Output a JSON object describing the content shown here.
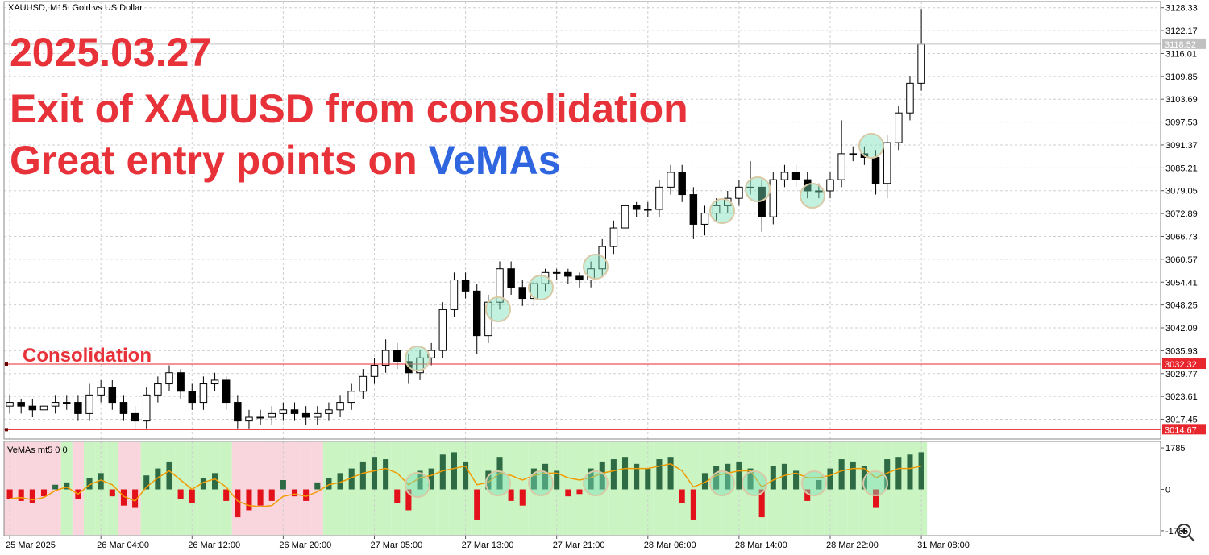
{
  "chart_data": [
    {
      "type": "candlestick",
      "symbol_label": "XAUUSD, M15:  Gold vs US Dollar",
      "title_lines": [
        "2025.03.27",
        "Exit of XAUUSD from consolidation",
        "Great entry points on"
      ],
      "title_highlight": "VeMAs",
      "annotation": "Consolidation",
      "open": [
        3021,
        3022,
        3021,
        3020,
        3021,
        3022,
        3022,
        3019,
        3024,
        3026,
        3022,
        3019,
        3017,
        3024,
        3027,
        3030,
        3025,
        3022,
        3027,
        3028,
        3022,
        3017,
        3018,
        3018,
        3019,
        3020,
        3019,
        3018,
        3019,
        3020,
        3022,
        3025,
        3029,
        3032,
        3036,
        3033,
        3030,
        3034,
        3036,
        3047,
        3055,
        3052,
        3040,
        3049,
        3058,
        3053,
        3050,
        3054,
        3057,
        3057,
        3056,
        3055,
        3058,
        3064,
        3069,
        3075,
        3074,
        3074,
        3080,
        3084,
        3078,
        3070,
        3073,
        3075,
        3077,
        3080,
        3080,
        3072,
        3082,
        3084,
        3082,
        3079,
        3079,
        3082,
        3089,
        3089,
        3088,
        3081,
        3092,
        3100,
        3108
      ],
      "high": [
        3024,
        3023,
        3023,
        3023,
        3024,
        3024,
        3024,
        3027,
        3028,
        3028,
        3024,
        3021,
        3026,
        3029,
        3032,
        3031,
        3027,
        3029,
        3030,
        3029,
        3024,
        3020,
        3020,
        3021,
        3022,
        3022,
        3021,
        3021,
        3022,
        3024,
        3027,
        3031,
        3034,
        3039,
        3038,
        3035,
        3036,
        3038,
        3049,
        3057,
        3057,
        3054,
        3051,
        3060,
        3060,
        3055,
        3056,
        3058,
        3058,
        3058,
        3057,
        3060,
        3066,
        3071,
        3077,
        3076,
        3076,
        3082,
        3086,
        3086,
        3080,
        3075,
        3077,
        3079,
        3082,
        3087,
        3082,
        3084,
        3086,
        3086,
        3084,
        3081,
        3084,
        3098,
        3091,
        3091,
        3090,
        3094,
        3102,
        3110,
        3128
      ],
      "low": [
        3019,
        3019,
        3018,
        3018,
        3019,
        3020,
        3017,
        3017,
        3022,
        3020,
        3017,
        3015,
        3015,
        3022,
        3025,
        3023,
        3020,
        3020,
        3025,
        3020,
        3015,
        3015,
        3016,
        3016,
        3017,
        3017,
        3016,
        3016,
        3017,
        3018,
        3020,
        3023,
        3027,
        3030,
        3031,
        3027,
        3028,
        3032,
        3034,
        3045,
        3050,
        3035,
        3038,
        3047,
        3051,
        3048,
        3048,
        3052,
        3055,
        3054,
        3053,
        3053,
        3056,
        3062,
        3067,
        3072,
        3072,
        3072,
        3078,
        3076,
        3066,
        3067,
        3071,
        3073,
        3075,
        3078,
        3068,
        3070,
        3080,
        3080,
        3077,
        3077,
        3077,
        3080,
        3087,
        3086,
        3078,
        3077,
        3090,
        3098,
        3106
      ],
      "close": [
        3022,
        3021,
        3020,
        3021,
        3022,
        3022,
        3019,
        3024,
        3026,
        3022,
        3019,
        3017,
        3024,
        3027,
        3030,
        3025,
        3022,
        3027,
        3028,
        3022,
        3017,
        3018,
        3018,
        3019,
        3020,
        3019,
        3018,
        3019,
        3020,
        3022,
        3025,
        3029,
        3032,
        3036,
        3033,
        3030,
        3034,
        3036,
        3047,
        3055,
        3052,
        3040,
        3049,
        3058,
        3053,
        3050,
        3054,
        3057,
        3057,
        3056,
        3055,
        3058,
        3064,
        3069,
        3075,
        3074,
        3074,
        3080,
        3084,
        3078,
        3070,
        3073,
        3075,
        3077,
        3080,
        3080,
        3072,
        3082,
        3084,
        3082,
        3079,
        3079,
        3082,
        3089,
        3089,
        3088,
        3081,
        3092,
        3100,
        3108,
        3118.52
      ],
      "xlim": [
        -0.5,
        101
      ],
      "xticks": [
        {
          "value": 0,
          "label": "25 Mar 2025"
        },
        {
          "value": 8,
          "label": "26 Mar 04:00"
        },
        {
          "value": 16,
          "label": "26 Mar 12:00"
        },
        {
          "value": 24,
          "label": "26 Mar 20:00"
        },
        {
          "value": 32,
          "label": "27 Mar 05:00"
        },
        {
          "value": 40,
          "label": "27 Mar 13:00"
        },
        {
          "value": 48,
          "label": "27 Mar 21:00"
        },
        {
          "value": 56,
          "label": "28 Mar 06:00"
        },
        {
          "value": 64,
          "label": "28 Mar 14:00"
        },
        {
          "value": 72,
          "label": "28 Mar 22:00"
        },
        {
          "value": 80,
          "label": "31 Mar 08:00"
        }
      ],
      "ylim": [
        3012.14,
        3130.0
      ],
      "yticks": [
        3128.33,
        3122.17,
        3116.01,
        3109.85,
        3103.69,
        3097.53,
        3091.37,
        3085.21,
        3079.05,
        3072.89,
        3066.73,
        3060.57,
        3054.41,
        3048.25,
        3042.09,
        3035.93,
        3029.77,
        3023.61,
        3017.45
      ],
      "grid": true,
      "levels": [
        3032.32,
        3014.67
      ],
      "level_color": "#e8262e",
      "last_price": 3118.52,
      "title_color": "#e8323a",
      "highlight_color": "#2f66e0"
    },
    {
      "type": "histogram-line",
      "label": "VeMAs mt5 0 0",
      "histogram": [
        -400,
        -500,
        -600,
        -300,
        200,
        300,
        -400,
        500,
        700,
        -300,
        -700,
        -800,
        600,
        900,
        1200,
        -400,
        -600,
        500,
        700,
        -500,
        -1200,
        -900,
        -700,
        -500,
        400,
        -300,
        -500,
        300,
        500,
        700,
        900,
        1200,
        1400,
        1300,
        -600,
        -900,
        800,
        900,
        1500,
        1600,
        1200,
        -1300,
        800,
        1400,
        -500,
        -700,
        900,
        1100,
        800,
        -300,
        -200,
        900,
        1200,
        1300,
        1400,
        1100,
        900,
        1300,
        1400,
        -600,
        -1300,
        700,
        1000,
        1100,
        1200,
        900,
        -1200,
        1000,
        1100,
        800,
        -500,
        400,
        900,
        1300,
        1200,
        1000,
        -800,
        1300,
        1400,
        1500,
        1600
      ],
      "line": [
        -400,
        -350,
        -450,
        -350,
        -50,
        100,
        -200,
        200,
        400,
        200,
        -300,
        -500,
        100,
        500,
        800,
        400,
        0,
        300,
        450,
        100,
        -500,
        -700,
        -750,
        -700,
        -300,
        -200,
        -300,
        -100,
        200,
        300,
        500,
        700,
        800,
        900,
        700,
        200,
        500,
        600,
        800,
        900,
        1000,
        200,
        300,
        700,
        600,
        400,
        600,
        700,
        700,
        500,
        400,
        500,
        700,
        800,
        900,
        900,
        900,
        1000,
        1100,
        800,
        100,
        300,
        600,
        700,
        800,
        800,
        100,
        400,
        600,
        700,
        500,
        500,
        600,
        800,
        900,
        900,
        500,
        700,
        900,
        900,
        1000
      ],
      "ylim": [
        -1995,
        2065
      ],
      "yticks": [
        1785,
        0,
        -1785
      ],
      "positive_color": "#2e6b45",
      "negative_color": "#e3121a",
      "line_color": "#f29a00",
      "positive_zone_color": "#bdf2b4",
      "negative_zone_color": "#f8cbd4"
    }
  ]
}
